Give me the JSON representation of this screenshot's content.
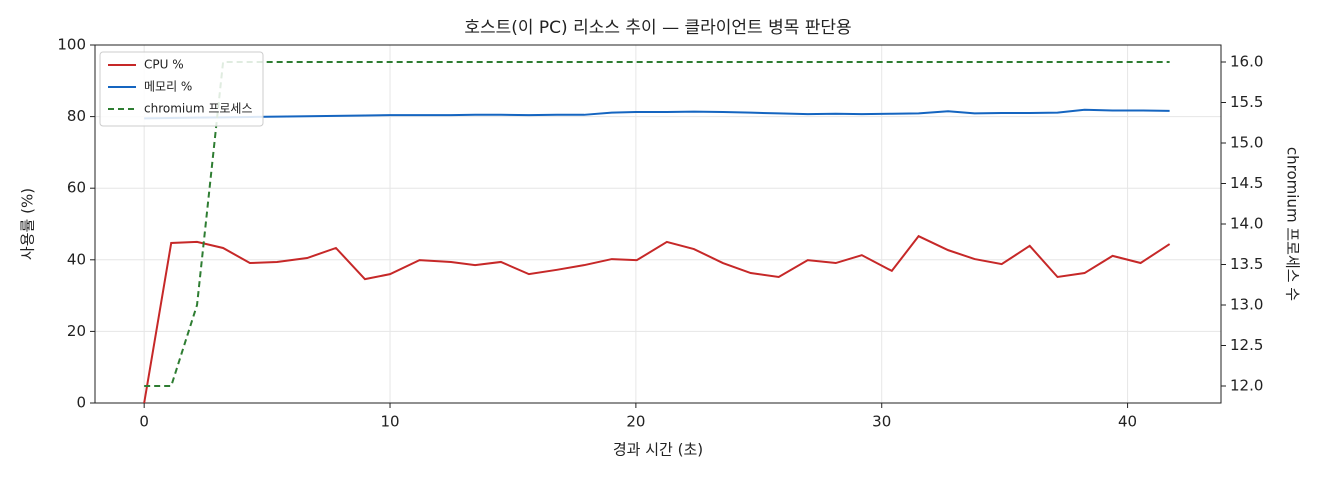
{
  "chart_data": {
    "type": "line",
    "title": "호스트(이 PC) 리소스 추이 — 클라이언트 병목 판단용",
    "x_label": "경과 시간 (초)",
    "y_label": "사용률 (%)",
    "y2_label": "chromium 프로세스 수",
    "x": [
      0,
      1.1,
      2.15,
      3.21,
      4.3,
      5.4,
      6.63,
      7.8,
      8.98,
      10.0,
      11.2,
      12.48,
      13.46,
      14.51,
      15.65,
      16.79,
      17.89,
      19.02,
      20.04,
      21.26,
      22.36,
      23.54,
      24.67,
      25.81,
      26.99,
      28.13,
      29.19,
      30.41,
      31.5,
      32.7,
      33.78,
      34.88,
      36.02,
      37.15,
      38.25,
      39.39,
      40.53,
      41.71
    ],
    "series": [
      {
        "name": "CPU %",
        "color": "#c62828",
        "values": [
          0,
          44.7,
          45,
          43.3,
          39.1,
          39.4,
          40.5,
          43.3,
          34.6,
          36.0,
          39.9,
          39.4,
          38.5,
          39.4,
          36,
          37.2,
          38.5,
          40.2,
          39.9,
          45,
          43,
          39.1,
          36.3,
          35.2,
          39.9,
          39.1,
          41.3,
          36.9,
          46.6,
          42.7,
          40.2,
          38.8,
          43.9,
          35.2,
          36.3,
          41.1,
          39.1,
          44.4
        ]
      },
      {
        "name": "메모리 %",
        "color": "#1565c0",
        "values": [
          79.5,
          79.6,
          79.7,
          79.8,
          79.9,
          80.0,
          80.1,
          80.2,
          80.3,
          80.4,
          80.4,
          80.4,
          80.5,
          80.5,
          80.4,
          80.5,
          80.5,
          81.1,
          81.3,
          81.3,
          81.4,
          81.3,
          81.1,
          80.9,
          80.7,
          80.8,
          80.7,
          80.8,
          80.9,
          81.5,
          80.9,
          81.0,
          81.0,
          81.1,
          81.9,
          81.7,
          81.7,
          81.6
        ]
      },
      {
        "name": "chromium 프로세스",
        "color": "#2e7d32",
        "axis": "y2",
        "linestyle": "dashed",
        "values": [
          12,
          12,
          13,
          16,
          16,
          16,
          16,
          16,
          16,
          16,
          16,
          16,
          16,
          16,
          16,
          16,
          16,
          16,
          16,
          16,
          16,
          16,
          16,
          16,
          16,
          16,
          16,
          16,
          16,
          16,
          16,
          16,
          16,
          16,
          16,
          16,
          16,
          16
        ]
      }
    ],
    "xlim": [
      -2,
      43.8
    ],
    "xticks": [
      0,
      10,
      20,
      30,
      40
    ],
    "ylim": [
      0,
      100
    ],
    "yticks": [
      0,
      20,
      40,
      60,
      80,
      100
    ],
    "y2lim": [
      11.79,
      16.21
    ],
    "y2ticks": [
      {
        "value": 12,
        "label": "12.0"
      },
      {
        "value": 12.5,
        "label": "12.5"
      },
      {
        "value": 13,
        "label": "13.0"
      },
      {
        "value": 13.5,
        "label": "13.5"
      },
      {
        "value": 14,
        "label": "14.0"
      },
      {
        "value": 14.5,
        "label": "14.5"
      },
      {
        "value": 15,
        "label": "15.0"
      },
      {
        "value": 15.5,
        "label": "15.5"
      },
      {
        "value": 16,
        "label": "16.0"
      }
    ],
    "grid": true,
    "legend": "upper-left"
  }
}
